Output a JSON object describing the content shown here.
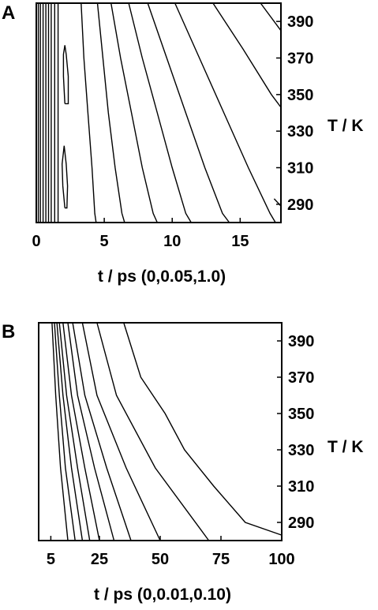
{
  "chart_data": [
    {
      "panel": "A",
      "type": "contour",
      "xlabel": "t / ps (0,0.05,1.0)",
      "ylabel": "T / K",
      "xlim": [
        0,
        18
      ],
      "ylim": [
        280,
        400
      ],
      "xticks": [
        0,
        5,
        10,
        15
      ],
      "yticks": [
        290,
        310,
        330,
        350,
        370,
        390
      ],
      "contours": [
        {
          "points": [
            [
              0.15,
              280
            ],
            [
              0.15,
              400
            ]
          ]
        },
        {
          "points": [
            [
              0.3,
              280
            ],
            [
              0.3,
              400
            ]
          ]
        },
        {
          "points": [
            [
              0.5,
              280
            ],
            [
              0.5,
              400
            ]
          ]
        },
        {
          "points": [
            [
              0.7,
              280
            ],
            [
              0.7,
              400
            ]
          ]
        },
        {
          "points": [
            [
              0.9,
              280
            ],
            [
              0.9,
              400
            ]
          ]
        },
        {
          "points": [
            [
              1.1,
              280
            ],
            [
              1.1,
              400
            ]
          ]
        },
        {
          "points": [
            [
              1.35,
              280
            ],
            [
              1.35,
              400
            ]
          ]
        },
        {
          "points": [
            [
              1.6,
              280
            ],
            [
              1.6,
              400
            ]
          ]
        },
        {
          "points": [
            [
              2.1,
              288
            ],
            [
              1.95,
              300
            ],
            [
              1.9,
              312
            ],
            [
              2.05,
              322
            ],
            [
              2.2,
              312
            ],
            [
              2.3,
              300
            ],
            [
              2.25,
              288
            ],
            [
              2.1,
              288
            ]
          ]
        },
        {
          "points": [
            [
              2.1,
              345
            ],
            [
              2.0,
              360
            ],
            [
              2.0,
              372
            ],
            [
              2.1,
              377
            ],
            [
              2.2,
              372
            ],
            [
              2.35,
              360
            ],
            [
              2.35,
              345
            ],
            [
              2.1,
              345
            ]
          ]
        },
        {
          "points": [
            [
              3.3,
              400
            ],
            [
              3.5,
              370
            ],
            [
              3.8,
              340
            ],
            [
              4.1,
              310
            ],
            [
              4.3,
              285
            ],
            [
              4.4,
              280
            ]
          ]
        },
        {
          "points": [
            [
              4.5,
              400
            ],
            [
              4.9,
              370
            ],
            [
              5.3,
              340
            ],
            [
              5.8,
              310
            ],
            [
              6.3,
              285
            ],
            [
              6.5,
              280
            ]
          ]
        },
        {
          "points": [
            [
              5.5,
              400
            ],
            [
              6.2,
              370
            ],
            [
              7.0,
              340
            ],
            [
              7.8,
              310
            ],
            [
              8.6,
              285
            ],
            [
              8.9,
              280
            ]
          ]
        },
        {
          "points": [
            [
              6.8,
              400
            ],
            [
              7.8,
              370
            ],
            [
              8.9,
              340
            ],
            [
              10.0,
              310
            ],
            [
              11.0,
              285
            ],
            [
              11.4,
              280
            ]
          ]
        },
        {
          "points": [
            [
              8.2,
              400
            ],
            [
              9.6,
              370
            ],
            [
              11.0,
              340
            ],
            [
              12.4,
              310
            ],
            [
              13.7,
              285
            ],
            [
              14.2,
              280
            ]
          ]
        },
        {
          "points": [
            [
              10.2,
              400
            ],
            [
              12.0,
              370
            ],
            [
              13.8,
              340
            ],
            [
              15.6,
              310
            ],
            [
              17.2,
              285
            ],
            [
              17.6,
              280
            ]
          ]
        },
        {
          "points": [
            [
              13.0,
              400
            ],
            [
              15.2,
              375
            ],
            [
              17.3,
              350
            ],
            [
              18.0,
              343
            ]
          ]
        },
        {
          "points": [
            [
              16.5,
              400
            ],
            [
              18.0,
              385
            ]
          ]
        },
        {
          "points": [
            [
              17.5,
              293
            ],
            [
              18.0,
              289
            ]
          ]
        }
      ]
    },
    {
      "panel": "B",
      "type": "contour",
      "xlabel": "t / ps (0,0.01,0.10)",
      "ylabel": "T / K",
      "xlim": [
        0,
        100
      ],
      "ylim": [
        280,
        400
      ],
      "xticks": [
        5,
        25,
        50,
        75,
        100
      ],
      "yticks": [
        290,
        310,
        330,
        350,
        370,
        390
      ],
      "contours": [
        {
          "points": [
            [
              5.5,
              400
            ],
            [
              7,
              360
            ],
            [
              9,
              320
            ],
            [
              12,
              280
            ]
          ]
        },
        {
          "points": [
            [
              6.5,
              400
            ],
            [
              8.5,
              360
            ],
            [
              11,
              320
            ],
            [
              15,
              280
            ]
          ]
        },
        {
          "points": [
            [
              7.5,
              400
            ],
            [
              10,
              360
            ],
            [
              13.5,
              320
            ],
            [
              18,
              280
            ]
          ]
        },
        {
          "points": [
            [
              8.5,
              400
            ],
            [
              11.5,
              360
            ],
            [
              16,
              320
            ],
            [
              21,
              280
            ]
          ]
        },
        {
          "points": [
            [
              10,
              400
            ],
            [
              13.5,
              360
            ],
            [
              19,
              320
            ],
            [
              25,
              280
            ]
          ]
        },
        {
          "points": [
            [
              12,
              400
            ],
            [
              16,
              360
            ],
            [
              23,
              320
            ],
            [
              31,
              280
            ]
          ]
        },
        {
          "points": [
            [
              14,
              400
            ],
            [
              19,
              360
            ],
            [
              28,
              320
            ],
            [
              38,
              280
            ]
          ]
        },
        {
          "points": [
            [
              18,
              400
            ],
            [
              24,
              360
            ],
            [
              36,
              320
            ],
            [
              50,
              280
            ]
          ]
        },
        {
          "points": [
            [
              24,
              400
            ],
            [
              32,
              360
            ],
            [
              48,
              320
            ],
            [
              70,
              280
            ]
          ]
        },
        {
          "points": [
            [
              35,
              400
            ],
            [
              42,
              370
            ],
            [
              52,
              350
            ],
            [
              60,
              330
            ],
            [
              72,
              310
            ],
            [
              85,
              290
            ],
            [
              100,
              283
            ]
          ]
        }
      ]
    }
  ]
}
